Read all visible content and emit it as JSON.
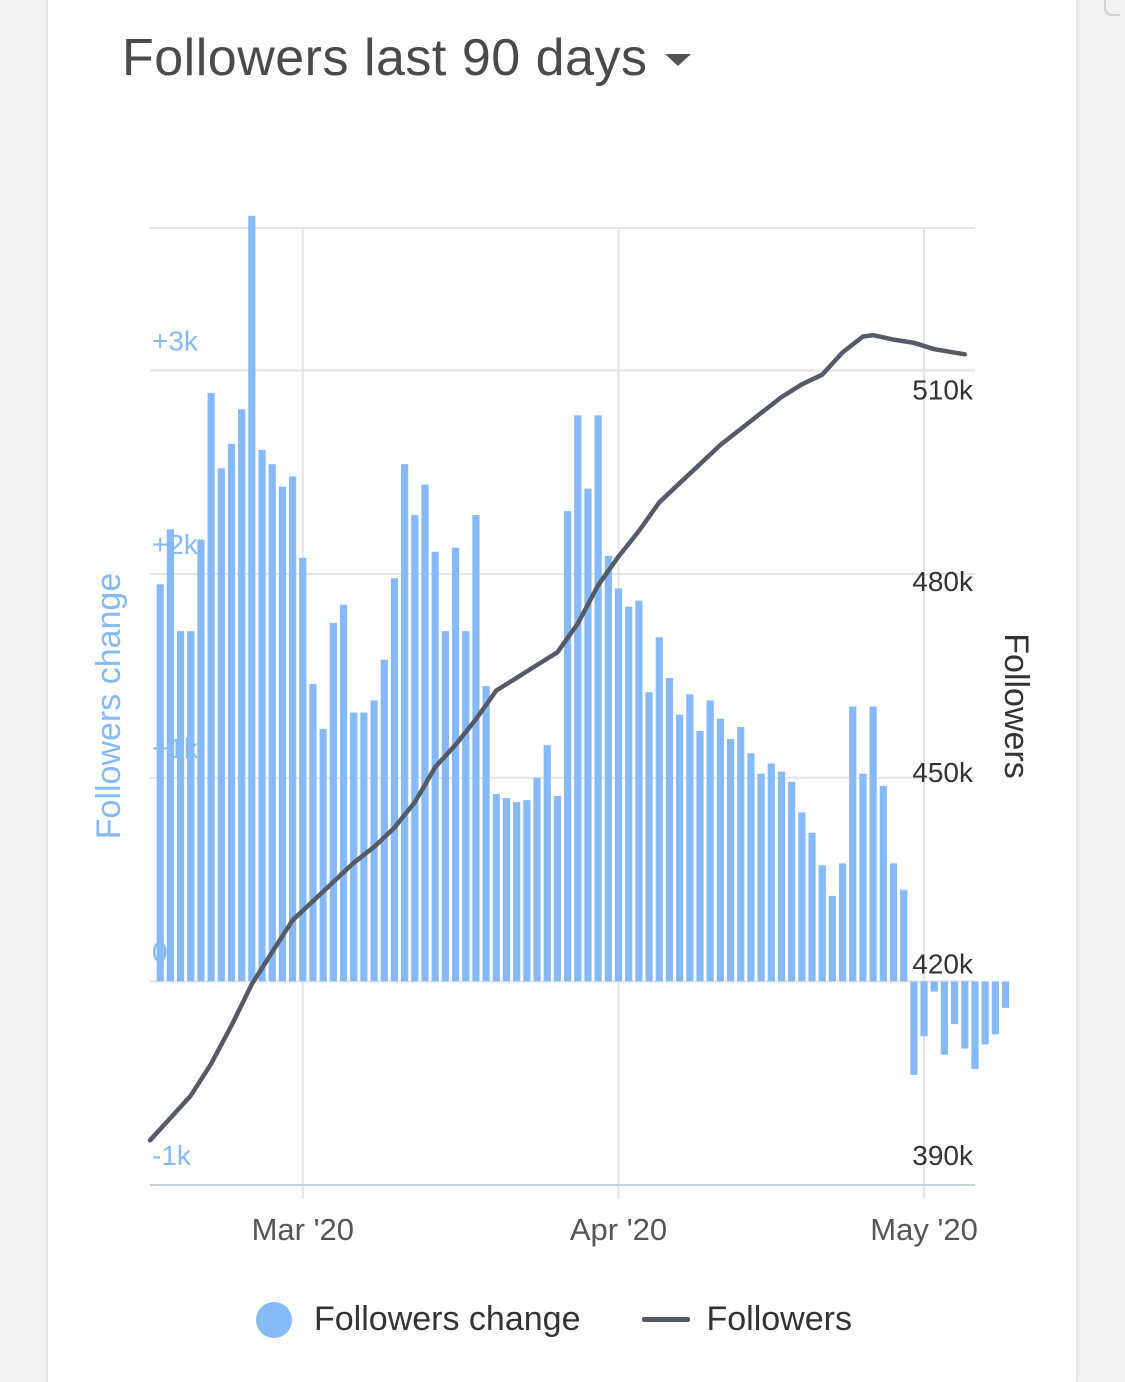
{
  "header": {
    "title": "Followers last 90 days"
  },
  "colors": {
    "bars": "#86b9f8",
    "line": "#545b67",
    "grid": "#e4e4e4",
    "left_axis_text": "#86b9f8",
    "right_axis_text": "#333333"
  },
  "legend": {
    "bars_label": "Followers change",
    "line_label": "Followers"
  },
  "chart_data": {
    "type": "bar+line",
    "title": "Followers last 90 days",
    "x_tick_labels": [
      "Mar '20",
      "Apr '20",
      "May '20"
    ],
    "left_axis": {
      "label": "Followers change",
      "ticks": [
        "-1k",
        "0",
        "+1k",
        "+2k",
        "+3k"
      ],
      "range": [
        -1000,
        3700
      ]
    },
    "right_axis": {
      "label": "Followers",
      "ticks": [
        "390k",
        "420k",
        "450k",
        "480k",
        "510k"
      ],
      "range": [
        390000,
        540000
      ]
    },
    "x_range": [
      "2020-02-15",
      "2020-05-06"
    ],
    "grid": true,
    "legend_position": "bottom",
    "series": [
      {
        "name": "Followers change",
        "type": "bar",
        "axis": "left",
        "start_date": "2020-02-16",
        "values": [
          1950,
          2220,
          1720,
          1720,
          2170,
          2890,
          2520,
          2640,
          2810,
          3760,
          2610,
          2540,
          2430,
          2480,
          2080,
          1460,
          1240,
          1760,
          1850,
          1320,
          1320,
          1380,
          1580,
          1980,
          2540,
          2290,
          2440,
          2110,
          1720,
          2130,
          1720,
          2290,
          1450,
          920,
          900,
          880,
          890,
          1000,
          1160,
          910,
          2310,
          2780,
          2420,
          2780,
          2090,
          1930,
          1840,
          1870,
          1420,
          1690,
          1490,
          1310,
          1410,
          1230,
          1380,
          1290,
          1190,
          1250,
          1120,
          1020,
          1070,
          1030,
          980,
          830,
          730,
          570,
          420,
          580,
          1350,
          1020,
          1350,
          960,
          580,
          450,
          -460,
          -270,
          -50,
          -360,
          -210,
          -330,
          -430,
          -310,
          -260,
          -130
        ]
      },
      {
        "name": "Followers",
        "type": "line",
        "axis": "right",
        "points": [
          [
            "2020-02-15",
            397000
          ],
          [
            "2020-02-17",
            400500
          ],
          [
            "2020-02-19",
            404000
          ],
          [
            "2020-02-21",
            409000
          ],
          [
            "2020-02-23",
            415000
          ],
          [
            "2020-02-25",
            421500
          ],
          [
            "2020-02-27",
            426500
          ],
          [
            "2020-02-29",
            431500
          ],
          [
            "2020-03-02",
            434500
          ],
          [
            "2020-03-04",
            437500
          ],
          [
            "2020-03-06",
            440500
          ],
          [
            "2020-03-08",
            443000
          ],
          [
            "2020-03-10",
            446000
          ],
          [
            "2020-03-12",
            450000
          ],
          [
            "2020-03-14",
            455500
          ],
          [
            "2020-03-16",
            459000
          ],
          [
            "2020-03-18",
            463000
          ],
          [
            "2020-03-20",
            467500
          ],
          [
            "2020-03-22",
            469500
          ],
          [
            "2020-03-24",
            471500
          ],
          [
            "2020-03-26",
            473500
          ],
          [
            "2020-03-28",
            478000
          ],
          [
            "2020-03-30",
            484000
          ],
          [
            "2020-04-01",
            488500
          ],
          [
            "2020-04-03",
            492500
          ],
          [
            "2020-04-05",
            497000
          ],
          [
            "2020-04-07",
            500000
          ],
          [
            "2020-04-09",
            503000
          ],
          [
            "2020-04-11",
            506000
          ],
          [
            "2020-04-13",
            508500
          ],
          [
            "2020-04-15",
            511000
          ],
          [
            "2020-04-17",
            513500
          ],
          [
            "2020-04-19",
            515500
          ],
          [
            "2020-04-21",
            517000
          ],
          [
            "2020-04-23",
            520500
          ],
          [
            "2020-04-25",
            523000
          ],
          [
            "2020-04-26",
            523200
          ],
          [
            "2020-04-28",
            522500
          ],
          [
            "2020-04-30",
            522000
          ],
          [
            "2020-05-02",
            521000
          ],
          [
            "2020-05-05",
            520200
          ]
        ]
      }
    ]
  }
}
